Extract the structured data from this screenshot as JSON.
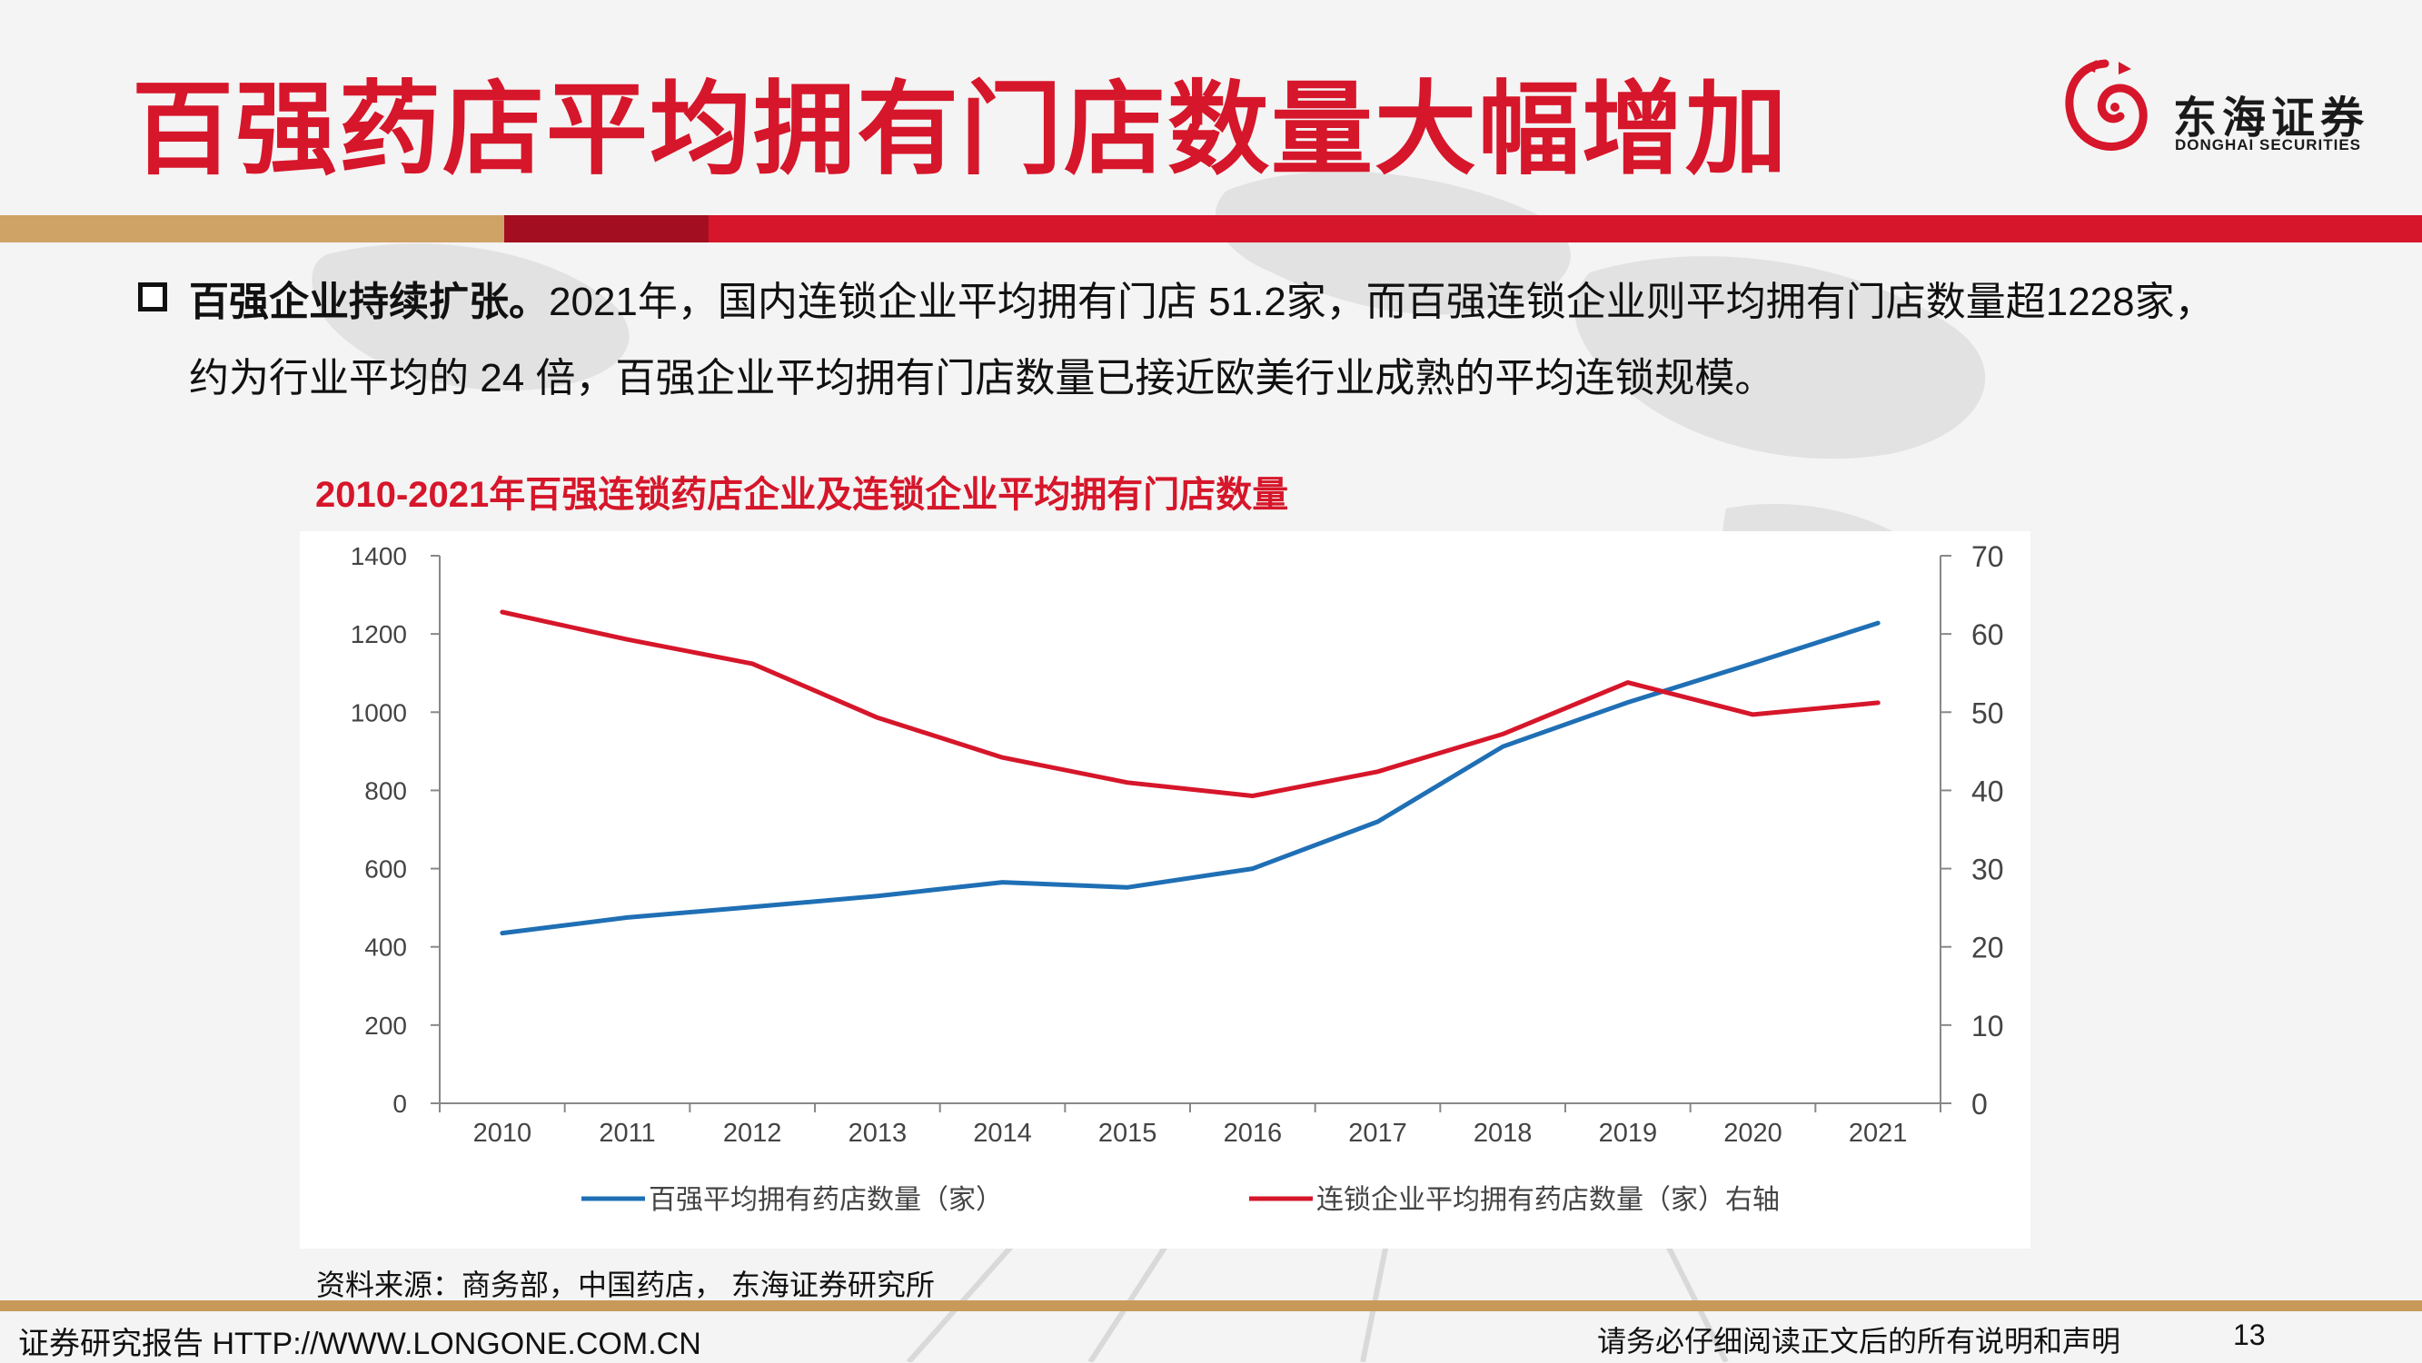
{
  "page": {
    "title": "百强药店平均拥有门店数量大幅增加",
    "logo_cn": "东海证券",
    "logo_en": "DONGHAI SECURITIES"
  },
  "body": {
    "line1_bold": "百强企业持续扩张。",
    "line1_rest": "2021年，国内连锁企业平均拥有门店 51.2家，而百强连锁企业则平均拥有门店数量超1228家，",
    "line2": "约为行业平均的 24 倍，百强企业平均拥有门店数量已接近欧美行业成熟的平均连锁规模。"
  },
  "chart_data": {
    "type": "line",
    "title": "2010-2021年百强连锁药店企业及连锁企业平均拥有门店数量",
    "categories": [
      "2010",
      "2011",
      "2012",
      "2013",
      "2014",
      "2015",
      "2016",
      "2017",
      "2018",
      "2019",
      "2020",
      "2021"
    ],
    "y_left": {
      "min": 0,
      "max": 1400,
      "ticks": [
        "0",
        "200",
        "400",
        "600",
        "800",
        "1000",
        "1200",
        "1400"
      ]
    },
    "y_right": {
      "min": 0,
      "max": 70,
      "ticks": [
        "0",
        "10",
        "20",
        "30",
        "40",
        "50",
        "60",
        "70"
      ]
    },
    "grid": false,
    "legend_position": "bottom",
    "series": [
      {
        "name": "百强平均拥有药店数量（家）",
        "axis": "left",
        "color": "#1f6fb5",
        "values": [
          435,
          475,
          502,
          530,
          565,
          552,
          600,
          720,
          912,
          1025,
          1125,
          1228
        ]
      },
      {
        "name": "连锁企业平均拥有药店数量（家）右轴",
        "axis": "right",
        "color": "#d6162a",
        "values": [
          62.8,
          59.3,
          56.2,
          49.3,
          44.2,
          41.0,
          39.3,
          42.4,
          47.2,
          53.8,
          49.7,
          51.2
        ]
      }
    ]
  },
  "source": "资料来源：商务部，中国药店， 东海证券研究所",
  "footer": {
    "left": "证券研究报告 HTTP://WWW.LONGONE.COM.CN",
    "right": "请务必仔细阅读正文后的所有说明和声明",
    "page": "13"
  }
}
